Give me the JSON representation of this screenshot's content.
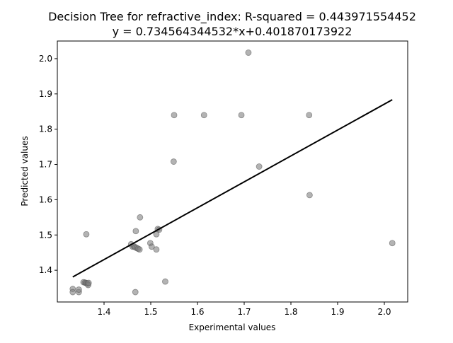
{
  "chart_data": {
    "type": "scatter",
    "title_line1": "Decision Tree for refractive_index: R-squared = 0.443971554452",
    "title_line2": "y = 0.734564344532*x+0.401870173922",
    "xlabel": "Experimental values",
    "ylabel": "Predicted values",
    "xlim": [
      1.3,
      2.05
    ],
    "ylim": [
      1.31,
      2.05
    ],
    "x_ticks": [
      "1.4",
      "1.5",
      "1.6",
      "1.7",
      "1.8",
      "1.9",
      "2.0"
    ],
    "y_ticks": [
      "1.4",
      "1.5",
      "1.6",
      "1.7",
      "1.8",
      "1.9",
      "2.0"
    ],
    "grid": false,
    "point_color": "#808080",
    "line_color": "#000000",
    "fit": {
      "slope": 0.734564344532,
      "intercept": 0.401870173922,
      "x_range": [
        1.333,
        2.017
      ]
    },
    "points": [
      {
        "x": 1.333,
        "y": 1.347
      },
      {
        "x": 1.333,
        "y": 1.338
      },
      {
        "x": 1.346,
        "y": 1.338
      },
      {
        "x": 1.346,
        "y": 1.345
      },
      {
        "x": 1.356,
        "y": 1.366
      },
      {
        "x": 1.359,
        "y": 1.365
      },
      {
        "x": 1.361,
        "y": 1.364
      },
      {
        "x": 1.363,
        "y": 1.363
      },
      {
        "x": 1.365,
        "y": 1.362
      },
      {
        "x": 1.366,
        "y": 1.358
      },
      {
        "x": 1.367,
        "y": 1.364
      },
      {
        "x": 1.362,
        "y": 1.502
      },
      {
        "x": 1.458,
        "y": 1.474
      },
      {
        "x": 1.461,
        "y": 1.467
      },
      {
        "x": 1.464,
        "y": 1.468
      },
      {
        "x": 1.467,
        "y": 1.465
      },
      {
        "x": 1.47,
        "y": 1.463
      },
      {
        "x": 1.473,
        "y": 1.461
      },
      {
        "x": 1.476,
        "y": 1.459
      },
      {
        "x": 1.468,
        "y": 1.511
      },
      {
        "x": 1.477,
        "y": 1.55
      },
      {
        "x": 1.467,
        "y": 1.338
      },
      {
        "x": 1.499,
        "y": 1.477
      },
      {
        "x": 1.502,
        "y": 1.467
      },
      {
        "x": 1.512,
        "y": 1.459
      },
      {
        "x": 1.512,
        "y": 1.502
      },
      {
        "x": 1.515,
        "y": 1.517
      },
      {
        "x": 1.518,
        "y": 1.515
      },
      {
        "x": 1.531,
        "y": 1.368
      },
      {
        "x": 1.549,
        "y": 1.708
      },
      {
        "x": 1.55,
        "y": 1.84
      },
      {
        "x": 1.614,
        "y": 1.84
      },
      {
        "x": 1.694,
        "y": 1.84
      },
      {
        "x": 1.709,
        "y": 2.017
      },
      {
        "x": 1.732,
        "y": 1.694
      },
      {
        "x": 1.839,
        "y": 1.84
      },
      {
        "x": 1.84,
        "y": 1.613
      },
      {
        "x": 2.017,
        "y": 1.477
      }
    ]
  }
}
